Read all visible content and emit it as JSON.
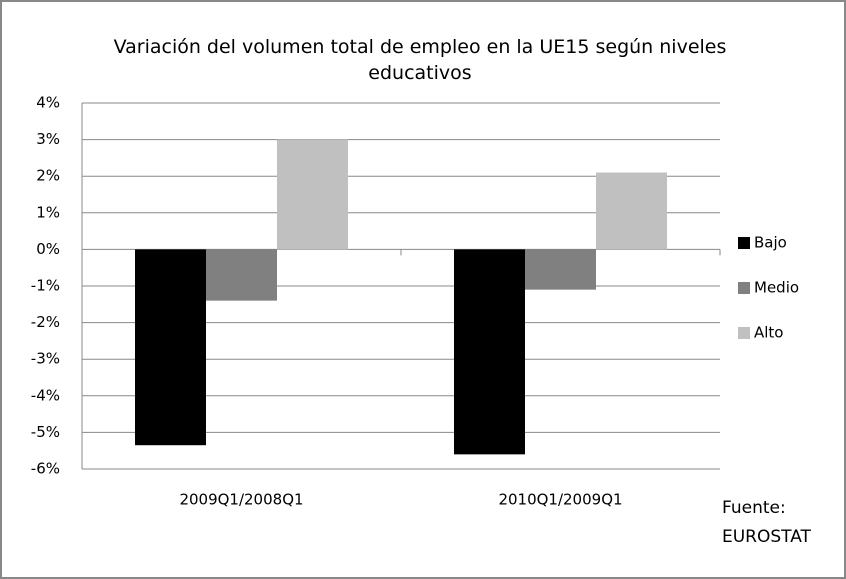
{
  "chart_data": {
    "type": "bar",
    "title": "Variación del volumen total de empleo en la UE15 según niveles educativos",
    "categories": [
      "2009Q1/2008Q1",
      "2010Q1/2009Q1"
    ],
    "series": [
      {
        "name": "Bajo",
        "color": "#000000",
        "values": [
          -5.35,
          -5.6
        ]
      },
      {
        "name": "Medio",
        "color": "#808080",
        "values": [
          -1.4,
          -1.1
        ]
      },
      {
        "name": "Alto",
        "color": "#c0c0c0",
        "values": [
          3.0,
          2.1
        ]
      }
    ],
    "ylim": [
      -6,
      4
    ],
    "yticks": [
      {
        "value": -6,
        "label": "-6%"
      },
      {
        "value": -5,
        "label": "-5%"
      },
      {
        "value": -4,
        "label": "-4%"
      },
      {
        "value": -3,
        "label": "-3%"
      },
      {
        "value": -2,
        "label": "-2%"
      },
      {
        "value": -1,
        "label": "-1%"
      },
      {
        "value": 0,
        "label": "0%"
      },
      {
        "value": 1,
        "label": "1%"
      },
      {
        "value": 2,
        "label": "2%"
      },
      {
        "value": 3,
        "label": "3%"
      },
      {
        "value": 4,
        "label": "4%"
      }
    ],
    "grid": true,
    "legend": "right",
    "annotation": "Fuente: EUROSTAT"
  }
}
